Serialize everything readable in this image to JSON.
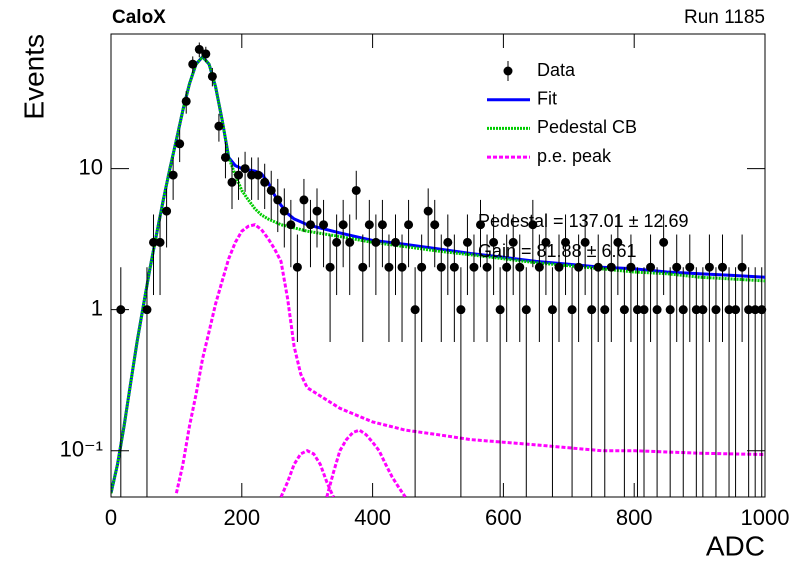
{
  "chart_data": {
    "type": "line",
    "title": "CaloX",
    "subtitle": "Run 1185",
    "x_label": "ADC",
    "y_label": "Events",
    "log_y": true,
    "xlim": [
      0,
      1000
    ],
    "ylim": [
      0.047,
      90
    ],
    "xticks": [
      0,
      200,
      400,
      600,
      800,
      1000
    ],
    "yticks": [
      {
        "value": 0.1,
        "label": "10⁻¹"
      },
      1,
      10
    ],
    "annotations": [
      "Pedestal = 137.01 ± 12.69",
      "Gain = 81.88 ± 6.61"
    ],
    "series": [
      {
        "name": "Data",
        "color": "#000000",
        "x": [
          5,
          15,
          25,
          35,
          45,
          55,
          65,
          75,
          85,
          95,
          105,
          115,
          125,
          135,
          145,
          155,
          165,
          175,
          185,
          195,
          205,
          215,
          225,
          235,
          245,
          255,
          265,
          275,
          285,
          295,
          305,
          315,
          325,
          335,
          345,
          355,
          365,
          375,
          385,
          395,
          405,
          415,
          425,
          435,
          445,
          455,
          465,
          475,
          485,
          495,
          505,
          515,
          525,
          535,
          545,
          555,
          565,
          575,
          585,
          595,
          605,
          615,
          625,
          635,
          645,
          655,
          665,
          675,
          685,
          695,
          705,
          715,
          725,
          735,
          745,
          755,
          765,
          775,
          785,
          795,
          805,
          815,
          825,
          835,
          845,
          855,
          865,
          875,
          885,
          895,
          905,
          915,
          925,
          935,
          945,
          955,
          965,
          975,
          985,
          995
        ],
        "values": [
          null,
          1,
          null,
          null,
          null,
          1,
          3,
          3,
          5,
          9,
          15,
          30,
          55,
          70,
          65,
          45,
          20,
          12,
          8,
          9,
          10,
          9,
          9,
          8,
          7,
          6,
          5,
          4,
          2,
          6,
          4,
          5,
          4,
          2,
          3,
          4,
          3,
          7,
          2,
          4,
          3,
          4,
          2,
          3,
          2,
          4,
          1,
          2,
          5,
          4,
          2,
          3,
          2,
          1,
          3,
          2,
          4,
          2,
          3,
          1,
          2,
          3,
          2,
          1,
          4,
          2,
          3,
          1,
          2,
          3,
          1,
          2,
          3,
          1,
          2,
          1,
          2,
          3,
          1,
          2,
          1,
          1,
          2,
          1,
          3,
          1,
          2,
          1,
          2,
          1,
          1,
          2,
          1,
          2,
          1,
          1,
          2,
          1,
          1,
          1
        ],
        "errors": [
          null,
          1,
          null,
          null,
          null,
          1,
          1.73,
          1.73,
          2.24,
          3,
          3.87,
          5.48,
          7.42,
          8.37,
          8.06,
          6.71,
          4.47,
          3.46,
          2.83,
          3,
          3.16,
          3,
          3,
          2.83,
          2.65,
          2.45,
          2.24,
          2,
          1.41,
          2.45,
          2,
          2.24,
          2,
          1.41,
          1.73,
          2,
          1.73,
          2.65,
          1.41,
          2,
          1.73,
          2,
          1.41,
          1.73,
          1.41,
          2,
          1,
          1.41,
          2.24,
          2,
          1.41,
          1.73,
          1.41,
          1,
          1.73,
          1.41,
          2,
          1.41,
          1.73,
          1,
          1.41,
          1.73,
          1.41,
          1,
          2,
          1.41,
          1.73,
          1,
          1.41,
          1.73,
          1,
          1.41,
          1.73,
          1,
          1.41,
          1,
          1.41,
          1.73,
          1,
          1.41,
          1,
          1,
          1.41,
          1,
          1.73,
          1,
          1.41,
          1,
          1.41,
          1,
          1,
          1.41,
          1,
          1.41,
          1,
          1,
          1.41,
          1,
          1,
          1
        ]
      },
      {
        "name": "Fit",
        "color": "#0000ff",
        "x": [
          0,
          10,
          20,
          30,
          40,
          50,
          60,
          70,
          80,
          90,
          100,
          110,
          120,
          130,
          140,
          150,
          160,
          170,
          180,
          190,
          200,
          210,
          220,
          230,
          240,
          250,
          260,
          270,
          280,
          290,
          300,
          350,
          400,
          450,
          500,
          550,
          600,
          650,
          700,
          750,
          800,
          850,
          900,
          950,
          1000
        ],
        "values": [
          0.05,
          0.08,
          0.15,
          0.3,
          0.6,
          1.1,
          2,
          3.5,
          6,
          10,
          16,
          26,
          40,
          55,
          62,
          55,
          38,
          22,
          12,
          10.5,
          10,
          9.8,
          9.6,
          9.2,
          8,
          6.5,
          5.5,
          4.8,
          4.4,
          4.2,
          4,
          3.5,
          3.1,
          2.9,
          2.7,
          2.5,
          2.35,
          2.2,
          2.1,
          2,
          1.95,
          1.85,
          1.8,
          1.75,
          1.7
        ]
      },
      {
        "name": "Pedestal CB",
        "color": "#00cc00",
        "x": [
          0,
          10,
          20,
          30,
          40,
          50,
          60,
          70,
          80,
          90,
          100,
          110,
          120,
          130,
          140,
          150,
          160,
          170,
          180,
          190,
          200,
          210,
          220,
          230,
          240,
          250,
          260,
          270,
          280,
          290,
          300,
          350,
          400,
          450,
          500,
          550,
          600,
          650,
          700,
          750,
          800,
          850,
          900,
          950,
          1000
        ],
        "values": [
          0.05,
          0.08,
          0.15,
          0.3,
          0.6,
          1.1,
          2,
          3.5,
          6,
          10,
          16,
          26,
          40,
          55,
          62,
          55,
          38,
          22,
          12,
          9,
          7,
          6,
          5.2,
          4.7,
          4.4,
          4.2,
          4,
          3.9,
          3.8,
          3.7,
          3.6,
          3.3,
          3,
          2.8,
          2.6,
          2.45,
          2.3,
          2.15,
          2.05,
          1.95,
          1.85,
          1.8,
          1.7,
          1.65,
          1.6
        ]
      },
      {
        "name": "p.e. peak",
        "color": "#ff00ff",
        "x": [
          100,
          110,
          120,
          130,
          140,
          150,
          160,
          170,
          180,
          190,
          200,
          210,
          220,
          230,
          240,
          250,
          260,
          270,
          280,
          290,
          300,
          350,
          400,
          450,
          500,
          550,
          600,
          650,
          700,
          750,
          800,
          850,
          900,
          950,
          1000
        ],
        "values": [
          0.05,
          0.08,
          0.15,
          0.25,
          0.45,
          0.7,
          1.1,
          1.6,
          2.3,
          3,
          3.6,
          3.9,
          4,
          3.7,
          3.2,
          2.7,
          2.2,
          1.2,
          0.55,
          0.35,
          0.28,
          0.2,
          0.16,
          0.14,
          0.13,
          0.12,
          0.115,
          0.11,
          0.105,
          0.1,
          0.1,
          0.098,
          0.096,
          0.095,
          0.094
        ]
      },
      {
        "color": "#ff00ff",
        "x": [
          260,
          270,
          280,
          290,
          300,
          310,
          320,
          330,
          340
        ],
        "values": [
          0.047,
          0.06,
          0.08,
          0.095,
          0.1,
          0.095,
          0.08,
          0.06,
          0.047
        ]
      },
      {
        "color": "#ff00ff",
        "x": [
          330,
          340,
          350,
          360,
          370,
          380,
          390,
          400,
          410,
          420,
          430,
          440,
          450
        ],
        "values": [
          0.047,
          0.07,
          0.1,
          0.12,
          0.135,
          0.14,
          0.13,
          0.115,
          0.1,
          0.08,
          0.065,
          0.055,
          0.047
        ]
      }
    ]
  }
}
